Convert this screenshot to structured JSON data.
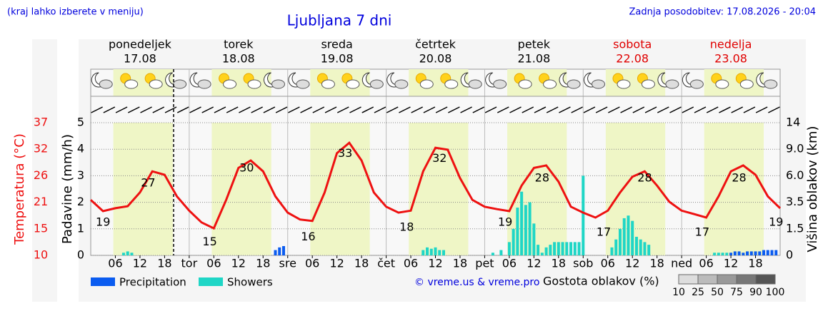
{
  "header": {
    "hint": "(kraj lahko izberete v meniju)",
    "update": "Zadnja posodobitev: 17.08.2026 - 20:04"
  },
  "chart_data": {
    "type": "meteogram",
    "title": "Ljubljana 7 dni",
    "days": [
      {
        "name": "ponedeljek",
        "date": "17.08",
        "color": "#000000"
      },
      {
        "name": "torek",
        "date": "18.08",
        "color": "#000000"
      },
      {
        "name": "sreda",
        "date": "19.08",
        "color": "#000000"
      },
      {
        "name": "četrtek",
        "date": "20.08",
        "color": "#000000"
      },
      {
        "name": "petek",
        "date": "21.08",
        "color": "#000000"
      },
      {
        "name": "sobota",
        "date": "22.08",
        "color": "#e00000"
      },
      {
        "name": "nedelja",
        "date": "23.08",
        "color": "#e00000"
      }
    ],
    "xlim": [
      0,
      168
    ],
    "xticks": [
      {
        "value": 6,
        "label": "06"
      },
      {
        "value": 12,
        "label": "12"
      },
      {
        "value": 18,
        "label": "18"
      },
      {
        "value": 24,
        "label": "tor"
      },
      {
        "value": 30,
        "label": "06"
      },
      {
        "value": 36,
        "label": "12"
      },
      {
        "value": 42,
        "label": "18"
      },
      {
        "value": 48,
        "label": "sre"
      },
      {
        "value": 54,
        "label": "06"
      },
      {
        "value": 60,
        "label": "12"
      },
      {
        "value": 66,
        "label": "18"
      },
      {
        "value": 72,
        "label": "čet"
      },
      {
        "value": 78,
        "label": "06"
      },
      {
        "value": 84,
        "label": "12"
      },
      {
        "value": 90,
        "label": "18"
      },
      {
        "value": 96,
        "label": "pet"
      },
      {
        "value": 102,
        "label": "06"
      },
      {
        "value": 108,
        "label": "12"
      },
      {
        "value": 114,
        "label": "18"
      },
      {
        "value": 120,
        "label": "sob"
      },
      {
        "value": 126,
        "label": "06"
      },
      {
        "value": 132,
        "label": "12"
      },
      {
        "value": 138,
        "label": "18"
      },
      {
        "value": 144,
        "label": "ned"
      },
      {
        "value": 150,
        "label": "06"
      },
      {
        "value": 156,
        "label": "12"
      },
      {
        "value": 162,
        "label": "18"
      }
    ],
    "ylabel": "Padavine (mm/h)",
    "ylim": [
      0,
      5
    ],
    "yticks": [
      0,
      1,
      2,
      3,
      4,
      5
    ],
    "grid": true,
    "temperature_axis": {
      "label": "Temperatura (°C)",
      "lim": [
        10,
        37
      ],
      "ticks": [
        10,
        {
          "value": 15.4,
          "label": "15"
        },
        {
          "value": 20.8,
          "label": "21"
        },
        {
          "value": 26.2,
          "label": "26"
        },
        {
          "value": 31.6,
          "label": "32"
        },
        37
      ]
    },
    "cloud_axis": {
      "label": "Višina oblakov (km)",
      "ticks": [
        0,
        1.5,
        3.5,
        {
          "value": 6,
          "label": "6.0"
        },
        {
          "value": 9,
          "label": "9.0"
        },
        14
      ]
    },
    "temperature": {
      "color": "#ee1111",
      "x": [
        0,
        3,
        6,
        9,
        12,
        15,
        18,
        21,
        24,
        27,
        30,
        33,
        36,
        39,
        42,
        45,
        48,
        51,
        54,
        57,
        60,
        63,
        66,
        69,
        72,
        75,
        78,
        81,
        84,
        87,
        90,
        93,
        96,
        99,
        102,
        105,
        108,
        111,
        114,
        117,
        120,
        123,
        126,
        129,
        132,
        135,
        138,
        141,
        144,
        147,
        150,
        153,
        156,
        159,
        162,
        165,
        168
      ],
      "values": [
        21.3,
        19.0,
        19.6,
        20.0,
        22.8,
        27.1,
        26.4,
        22.0,
        19.1,
        16.7,
        15.5,
        21.3,
        27.8,
        29.3,
        27.1,
        22.0,
        18.7,
        17.3,
        17.0,
        22.8,
        30.8,
        32.9,
        29.3,
        22.8,
        19.9,
        18.7,
        19.1,
        27.1,
        31.9,
        31.5,
        25.7,
        21.3,
        19.9,
        19.4,
        19.0,
        24.2,
        27.8,
        28.3,
        25.0,
        19.9,
        18.7,
        17.7,
        19.1,
        22.8,
        26.0,
        27.1,
        24.2,
        20.9,
        19.1,
        18.4,
        17.7,
        22.0,
        27.1,
        28.3,
        26.4,
        22.0,
        19.6
      ]
    },
    "temperature_labels": {
      "x": [
        3,
        14,
        29,
        38,
        53,
        62,
        77,
        85,
        101,
        110,
        125,
        135,
        149,
        158,
        167
      ],
      "values": [
        19,
        27,
        15,
        30,
        16,
        33,
        18,
        32,
        19,
        28,
        17,
        28,
        17,
        28,
        19
      ]
    },
    "series": [
      {
        "name": "Precipitation",
        "color": "#0b5cf0",
        "x": [
          45,
          46,
          47,
          156,
          157,
          158,
          159,
          160,
          161,
          162,
          163,
          164,
          165,
          166,
          167
        ],
        "values": [
          0.2,
          0.3,
          0.35,
          0.1,
          0.15,
          0.15,
          0.1,
          0.15,
          0.15,
          0.15,
          0.15,
          0.2,
          0.2,
          0.2,
          0.2
        ]
      },
      {
        "name": "Showers",
        "color": "#1fd6c6",
        "x": [
          8,
          9,
          10,
          81,
          82,
          83,
          84,
          85,
          86,
          98,
          100,
          102,
          103,
          104,
          105,
          106,
          107,
          108,
          109,
          110,
          111,
          112,
          113,
          114,
          115,
          116,
          117,
          118,
          119,
          120,
          127,
          128,
          129,
          130,
          131,
          132,
          133,
          134,
          135,
          136,
          152,
          153,
          154,
          155
        ],
        "values": [
          0.1,
          0.15,
          0.1,
          0.2,
          0.3,
          0.25,
          0.3,
          0.2,
          0.2,
          0.1,
          0.2,
          0.5,
          1.0,
          1.8,
          2.4,
          1.9,
          2.0,
          1.2,
          0.4,
          0.1,
          0.3,
          0.4,
          0.5,
          0.5,
          0.5,
          0.5,
          0.5,
          0.5,
          0.5,
          3.0,
          0.3,
          0.6,
          1.0,
          1.4,
          1.5,
          1.3,
          0.7,
          0.6,
          0.5,
          0.4,
          0.1,
          0.1,
          0.1,
          0.1
        ]
      }
    ],
    "credit": "© vreme.us & vreme.pro",
    "cloud_legend": {
      "title": "Gostota oblakov (%)",
      "levels": [
        10,
        25,
        50,
        75,
        90,
        100
      ]
    }
  }
}
